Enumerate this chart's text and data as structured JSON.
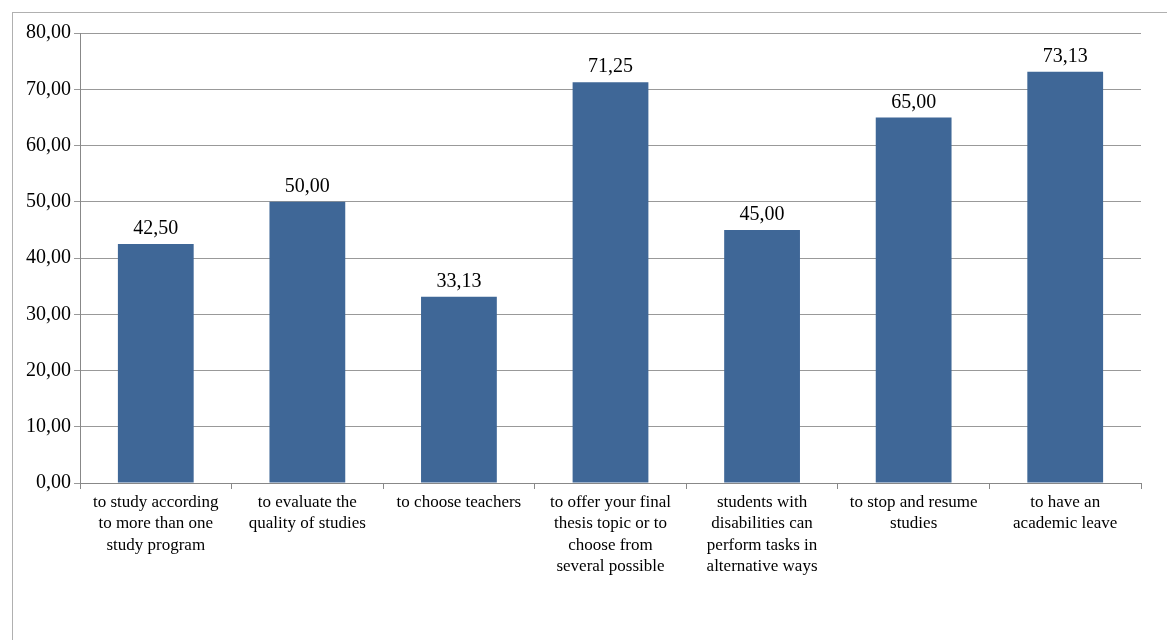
{
  "chart_data": {
    "type": "bar",
    "categories": [
      "to study according to more than one study program",
      "to evaluate the quality of studies",
      "to choose teachers",
      "to offer your final thesis topic or to choose from several possible",
      "students with disabilities can perform tasks in alternative ways",
      "to stop and resume studies",
      "to have an academic leave"
    ],
    "values": [
      42.5,
      50,
      33.13,
      71.25,
      45,
      65,
      73.13
    ],
    "value_labels": [
      "42,50",
      "50,00",
      "33,13",
      "71,25",
      "45,00",
      "65,00",
      "73,13"
    ],
    "color": "#3f6797",
    "ylim": [
      0,
      80
    ],
    "yticks": [
      {
        "value": 0,
        "label": "0,00"
      },
      {
        "value": 10,
        "label": "10,00"
      },
      {
        "value": 20,
        "label": "20,00"
      },
      {
        "value": 30,
        "label": "30,00"
      },
      {
        "value": 40,
        "label": "40,00"
      },
      {
        "value": 50,
        "label": "50,00"
      },
      {
        "value": 60,
        "label": "60,00"
      },
      {
        "value": 70,
        "label": "70,00"
      },
      {
        "value": 80,
        "label": "80,00"
      }
    ],
    "grid": "y",
    "legend": false
  }
}
